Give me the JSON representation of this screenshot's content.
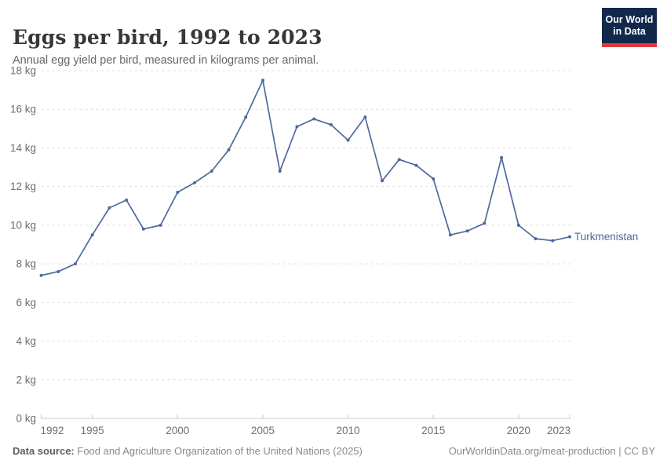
{
  "header": {
    "title": "Eggs per bird, 1992 to 2023",
    "subtitle": "Annual egg yield per bird, measured in kilograms per animal.",
    "logo": {
      "line1": "Our World",
      "line2": "in Data"
    }
  },
  "chart_data": {
    "type": "line",
    "title": "Eggs per bird, 1992 to 2023",
    "subtitle": "Annual egg yield per bird, measured in kilograms per animal.",
    "unit": "kg",
    "x": [
      1992,
      1993,
      1994,
      1995,
      1996,
      1997,
      1998,
      1999,
      2000,
      2001,
      2002,
      2003,
      2004,
      2005,
      2006,
      2007,
      2008,
      2009,
      2010,
      2011,
      2012,
      2013,
      2014,
      2015,
      2016,
      2017,
      2018,
      2019,
      2020,
      2021,
      2022,
      2023
    ],
    "series": [
      {
        "name": "Turkmenistan",
        "color": "#4C6A9C",
        "values": [
          7.4,
          7.6,
          8.0,
          9.5,
          10.9,
          11.3,
          9.8,
          10.0,
          11.7,
          12.2,
          12.8,
          13.9,
          15.6,
          17.5,
          12.8,
          15.1,
          15.5,
          15.2,
          14.4,
          15.6,
          12.3,
          13.4,
          13.1,
          12.4,
          9.5,
          9.7,
          10.1,
          13.5,
          10.0,
          9.3,
          9.2,
          9.4
        ]
      }
    ],
    "xticks": [
      1992,
      1995,
      2000,
      2005,
      2010,
      2015,
      2020,
      2023
    ],
    "ylim": [
      0,
      18
    ],
    "ytick_step": 2,
    "ytick_suffix": " kg",
    "grid": "horizontal-dashed",
    "legend": "end-of-line-label"
  },
  "footer": {
    "datasource_label": "Data source:",
    "datasource_text": "Food and Agriculture Organization of the United Nations (2025)",
    "credit": "OurWorldinData.org/meat-production | CC BY"
  },
  "colors": {
    "line": "#4C6A9C",
    "grid": "#dedede",
    "axis": "#c8c8c8",
    "tick_label": "#6e6e6e",
    "logo_bg": "#12294b",
    "logo_stripe": "#e0373f"
  }
}
